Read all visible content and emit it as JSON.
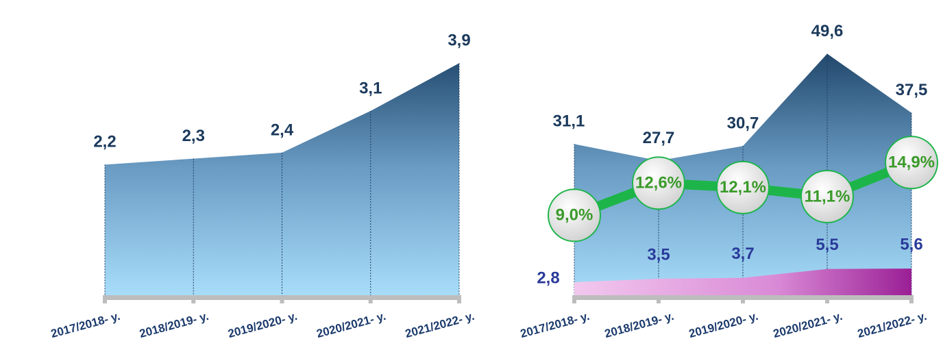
{
  "chart_data": [
    {
      "type": "area",
      "categories": [
        "2017/2018- y.",
        "2018/2019- y.",
        "2019/2020- y.",
        "2020/2021- y.",
        "2021/2022- y."
      ],
      "series": [
        {
          "color": "#1a3f63",
          "values": [
            2.2,
            2.3,
            2.4,
            3.1,
            3.9
          ],
          "value_labels": [
            "2,2",
            "2,3",
            "2,4",
            "3,1",
            "3,9"
          ]
        }
      ],
      "ylim": [
        0,
        4.5
      ]
    },
    {
      "type": "area",
      "categories": [
        "2017/2018- y.",
        "2018/2019- y.",
        "2019/2020- y.",
        "2020/2021- y.",
        "2021/2022- y."
      ],
      "series": [
        {
          "color": "#1a3f63",
          "values": [
            31.1,
            27.7,
            30.7,
            49.6,
            37.5
          ],
          "value_labels": [
            "31,1",
            "27,7",
            "30,7",
            "49,6",
            "37,5"
          ]
        },
        {
          "color": "#a0289a",
          "values": [
            2.8,
            3.5,
            3.7,
            5.5,
            5.6
          ],
          "value_labels": [
            "2,8",
            "3,5",
            "3,7",
            "5,5",
            "5,6"
          ]
        },
        {
          "type": "line",
          "axis": "y2",
          "color": "#1db54a",
          "values": [
            9.0,
            12.6,
            12.1,
            11.1,
            14.9
          ],
          "value_labels": [
            "9,0%",
            "12,6%",
            "12,1%",
            "11,1%",
            "14,9%"
          ]
        }
      ],
      "ylim": [
        0,
        55
      ],
      "y2lim": [
        0,
        30
      ]
    }
  ]
}
